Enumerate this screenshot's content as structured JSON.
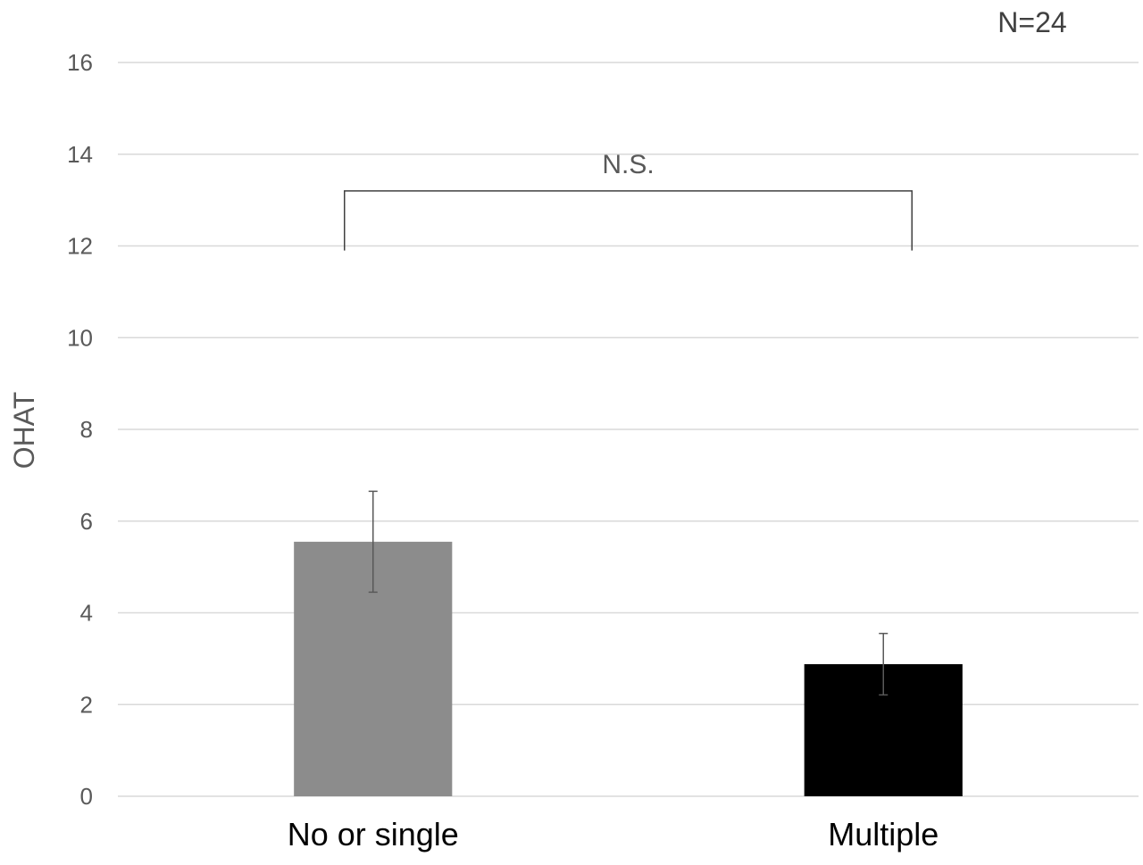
{
  "chart_data": {
    "type": "bar",
    "categories": [
      "No or single",
      "Multiple"
    ],
    "values": [
      5.55,
      2.88
    ],
    "errors": [
      1.1,
      0.67
    ],
    "colors": [
      "#8c8c8c",
      "#000000"
    ],
    "ylabel": "OHAT",
    "xlabel": "",
    "title": "",
    "ylim": [
      0,
      16
    ],
    "yticks": [
      0,
      2,
      4,
      6,
      8,
      10,
      12,
      14,
      16
    ],
    "grid": true,
    "annotations": {
      "significance": "N.S.",
      "bracket_level": 13.2,
      "bracket_leg_bottom": 11.9,
      "sample_size": "N=24"
    }
  }
}
